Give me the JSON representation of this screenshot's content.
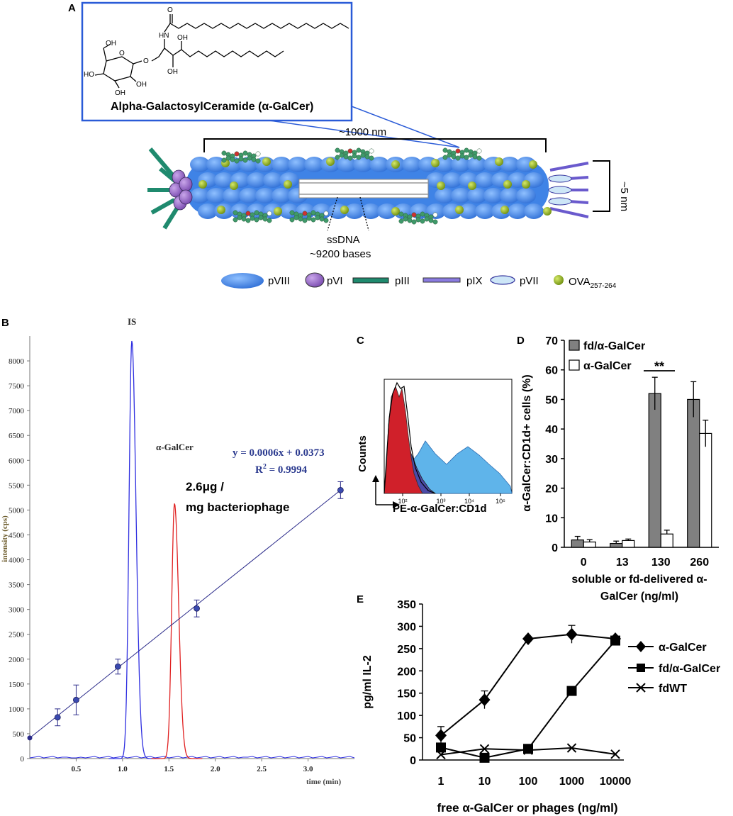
{
  "panels": {
    "A": {
      "letter": "A",
      "molecule_caption": "Alpha-GalactosylCeramide (α-GalCer)",
      "atoms": [
        "O",
        "HN",
        "O",
        "OH",
        "O",
        "OH",
        "OH",
        "HO",
        "OH"
      ],
      "length_label": "~1000 nm",
      "width_label": "~5 nm",
      "dna_label": "ssDNA",
      "dna_bases": "~9200 bases",
      "legend": [
        {
          "key": "pVIII",
          "label": "pVIII"
        },
        {
          "key": "pVI",
          "label": "pVI"
        },
        {
          "key": "pIII",
          "label": "pIII"
        },
        {
          "key": "pIX",
          "label": "pIX"
        },
        {
          "key": "pVII",
          "label": "pVII"
        },
        {
          "key": "ova",
          "label": "OVA",
          "sub": "257-264"
        }
      ],
      "colors": {
        "pVIII": "#3a7fe0",
        "pVI": "#9b6bc9",
        "pIII": "#1f8a6e",
        "pIX": "#6a5acd",
        "pVII": "#b9dcf5",
        "ova": "#8fb01a",
        "callout": "#2a5bd7"
      }
    },
    "B": {
      "letter": "B",
      "peak_is_label": "IS",
      "peak_galcer_label": "α-GalCer",
      "equation": "y = 0.0006x + 0.0373",
      "r2_prefix": "R",
      "r2_exp": "2",
      "r2_value": " = 0.9994",
      "amount_line1": "2.6μg /",
      "amount_line2": "mg bacteriophage",
      "ylabel": "intensity (cps)",
      "xlabel": "time (min)",
      "yticks": [
        "0",
        "500",
        "1000",
        "1500",
        "2000",
        "2500",
        "3000",
        "3500",
        "4000",
        "4500",
        "5000",
        "5500",
        "6000",
        "6500",
        "7000",
        "7500",
        "8000"
      ],
      "xticks": [
        "0.5",
        "1.0",
        "1.5",
        "2.0",
        "2.5",
        "3.0"
      ],
      "colors": {
        "is": "#2f2fe0",
        "galcer": "#e02020",
        "fit": "#2b2b8a",
        "text_blue": "#2b3a8f"
      }
    },
    "C": {
      "letter": "C",
      "ylabel": "Counts",
      "xlabel": "PE-α-GalCer:CD1d",
      "xticks": [
        "10²",
        "10³",
        "10⁴",
        "10⁵"
      ],
      "colors": {
        "red": "#d0202a",
        "dark": "#4b4aa8",
        "light": "#5fb4ea"
      }
    },
    "E": {
      "letter": "E",
      "ylabel": "pg/ml IL-2",
      "xlabel": "free α-GalCer or phages (ng/ml)",
      "legend": [
        "α-GalCer",
        "fd/α-GalCer",
        "fdWT"
      ]
    }
  },
  "chart_data": [
    {
      "panel": "B",
      "type": "line",
      "x_axis": "time (min)",
      "y_axis": "intensity (cps)",
      "xlim": [
        0,
        3.5
      ],
      "ylim": [
        0,
        8500
      ],
      "calibration_points": [
        {
          "x": 0.3,
          "y": 830,
          "err": 170
        },
        {
          "x": 0.5,
          "y": 1180,
          "err": 300
        },
        {
          "x": 0.95,
          "y": 1850,
          "err": 150
        },
        {
          "x": 1.8,
          "y": 3020,
          "err": 170
        },
        {
          "x": 3.35,
          "y": 5400,
          "err": 170
        }
      ],
      "peaks": [
        {
          "name": "IS",
          "center": 1.1,
          "height": 8400
        },
        {
          "name": "α-GalCer",
          "center": 1.56,
          "height": 5130
        }
      ]
    },
    {
      "panel": "D",
      "type": "bar",
      "title": "",
      "categories": [
        "0",
        "13",
        "130",
        "260"
      ],
      "series": [
        {
          "name": "fd/α-GalCer",
          "values": [
            2.5,
            1.3,
            52,
            50
          ],
          "errors": [
            1.2,
            0.8,
            5.5,
            6
          ],
          "color": "#808080"
        },
        {
          "name": "α-GalCer",
          "values": [
            1.8,
            2.3,
            4.5,
            38.5
          ],
          "errors": [
            0.8,
            0.5,
            1.3,
            4.5
          ],
          "color": "#ffffff"
        }
      ],
      "xlabel": "soluble or fd-delivered α-GalCer (ng/ml)",
      "ylabel": "α-GalCer:CD1d+ cells (%)",
      "ylim": [
        0,
        70
      ],
      "yticks": [
        "0",
        "10",
        "20",
        "30",
        "40",
        "50",
        "60",
        "70"
      ],
      "annotation": "**"
    },
    {
      "panel": "E",
      "type": "line",
      "categories": [
        "1",
        "10",
        "100",
        "1000",
        "10000"
      ],
      "series": [
        {
          "name": "α-GalCer",
          "marker": "diamond",
          "values": [
            55,
            135,
            272,
            282,
            272
          ],
          "errors": [
            20,
            20,
            0,
            20,
            0
          ]
        },
        {
          "name": "fd/α-GalCer",
          "marker": "square",
          "values": [
            28,
            5,
            25,
            155,
            268
          ],
          "errors": [
            0,
            0,
            0,
            0,
            0
          ]
        },
        {
          "name": "fdWT",
          "marker": "x",
          "values": [
            12,
            25,
            22,
            27,
            13
          ],
          "errors": [
            0,
            0,
            0,
            0,
            0
          ]
        }
      ],
      "xlabel": "free α-GalCer or phages (ng/ml)",
      "ylabel": "pg/ml IL-2",
      "ylim": [
        0,
        350
      ],
      "yticks": [
        "0",
        "50",
        "100",
        "150",
        "200",
        "250",
        "300",
        "350"
      ]
    }
  ]
}
